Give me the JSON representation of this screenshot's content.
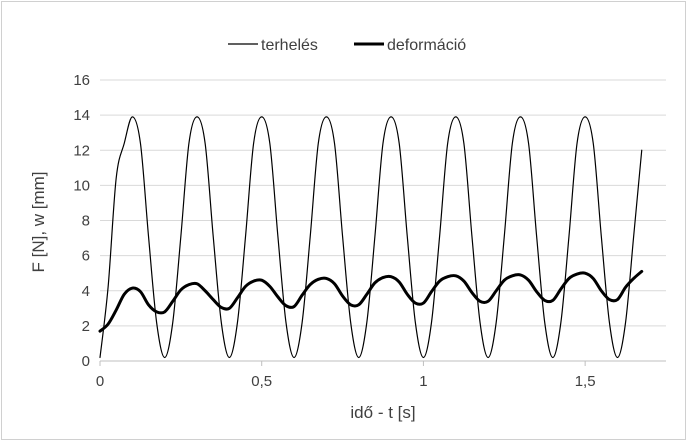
{
  "chart_data": {
    "type": "line",
    "title": "",
    "xlabel": "idő - t [s]",
    "ylabel": "F [N], w [mm]",
    "xlim": [
      0,
      1.75
    ],
    "ylim": [
      0,
      16
    ],
    "x_ticks": [
      0,
      0.5,
      1,
      1.5
    ],
    "x_tick_labels": [
      "0",
      "0,5",
      "1",
      "1,5"
    ],
    "y_ticks": [
      0,
      2,
      4,
      6,
      8,
      10,
      12,
      14,
      16
    ],
    "y_tick_labels": [
      "0",
      "2",
      "4",
      "6",
      "8",
      "10",
      "12",
      "14",
      "16"
    ],
    "grid": "horizontal",
    "legend_position": "top",
    "series": [
      {
        "name": "terhelés",
        "color": "#000000",
        "line_weight": "thin",
        "x": [
          0,
          0.025,
          0.05,
          0.075,
          0.1,
          0.125,
          0.15,
          0.175,
          0.2,
          0.225,
          0.25,
          0.275,
          0.3,
          0.325,
          0.35,
          0.375,
          0.4,
          0.425,
          0.45,
          0.475,
          0.5,
          0.525,
          0.55,
          0.575,
          0.6,
          0.625,
          0.65,
          0.675,
          0.7,
          0.725,
          0.75,
          0.775,
          0.8,
          0.825,
          0.85,
          0.875,
          0.9,
          0.925,
          0.95,
          0.975,
          1.0,
          1.025,
          1.05,
          1.075,
          1.1,
          1.125,
          1.15,
          1.175,
          1.2,
          1.225,
          1.25,
          1.275,
          1.3,
          1.325,
          1.35,
          1.375,
          1.4,
          1.425,
          1.45,
          1.475,
          1.5,
          1.525,
          1.55,
          1.575,
          1.6,
          1.625,
          1.65,
          1.675
        ],
        "y": [
          0.2,
          4.2,
          10.4,
          12.4,
          13.9,
          12.4,
          7.1,
          2.2,
          0.2,
          2.2,
          7.1,
          12.4,
          13.9,
          12.4,
          7.1,
          2.2,
          0.2,
          2.2,
          7.1,
          12.4,
          13.9,
          12.4,
          7.1,
          2.2,
          0.2,
          2.2,
          7.1,
          12.4,
          13.9,
          12.4,
          7.1,
          2.2,
          0.2,
          2.2,
          7.1,
          12.4,
          13.9,
          12.4,
          7.1,
          2.2,
          0.2,
          2.2,
          7.1,
          12.4,
          13.9,
          12.4,
          7.1,
          2.2,
          0.2,
          2.2,
          7.1,
          12.4,
          13.9,
          12.4,
          7.1,
          2.2,
          0.2,
          2.2,
          7.1,
          12.4,
          13.9,
          12.4,
          7.1,
          2.2,
          0.2,
          2.2,
          7.1,
          12.0
        ]
      },
      {
        "name": "deformáció",
        "color": "#000000",
        "line_weight": "bold",
        "x": [
          0,
          0.025,
          0.05,
          0.075,
          0.1,
          0.125,
          0.15,
          0.175,
          0.2,
          0.225,
          0.25,
          0.275,
          0.3,
          0.325,
          0.35,
          0.375,
          0.4,
          0.425,
          0.45,
          0.475,
          0.5,
          0.525,
          0.55,
          0.575,
          0.6,
          0.625,
          0.65,
          0.675,
          0.7,
          0.725,
          0.75,
          0.775,
          0.8,
          0.825,
          0.85,
          0.875,
          0.9,
          0.925,
          0.95,
          0.975,
          1.0,
          1.025,
          1.05,
          1.075,
          1.1,
          1.125,
          1.15,
          1.175,
          1.2,
          1.225,
          1.25,
          1.275,
          1.3,
          1.325,
          1.35,
          1.375,
          1.4,
          1.425,
          1.45,
          1.475,
          1.5,
          1.525,
          1.55,
          1.575,
          1.6,
          1.625,
          1.65,
          1.675
        ],
        "y": [
          1.7,
          2.1,
          2.9,
          3.8,
          4.15,
          3.95,
          3.2,
          2.8,
          2.8,
          3.4,
          4.05,
          4.35,
          4.4,
          4.0,
          3.5,
          3.05,
          3.0,
          3.6,
          4.25,
          4.55,
          4.6,
          4.25,
          3.65,
          3.15,
          3.1,
          3.75,
          4.35,
          4.65,
          4.7,
          4.4,
          3.7,
          3.2,
          3.2,
          3.8,
          4.45,
          4.75,
          4.8,
          4.5,
          3.8,
          3.3,
          3.3,
          3.95,
          4.55,
          4.8,
          4.85,
          4.55,
          3.9,
          3.4,
          3.4,
          4.0,
          4.6,
          4.85,
          4.9,
          4.6,
          3.95,
          3.45,
          3.45,
          4.1,
          4.7,
          4.95,
          5.0,
          4.7,
          4.0,
          3.5,
          3.5,
          4.2,
          4.7,
          5.1
        ]
      }
    ]
  }
}
